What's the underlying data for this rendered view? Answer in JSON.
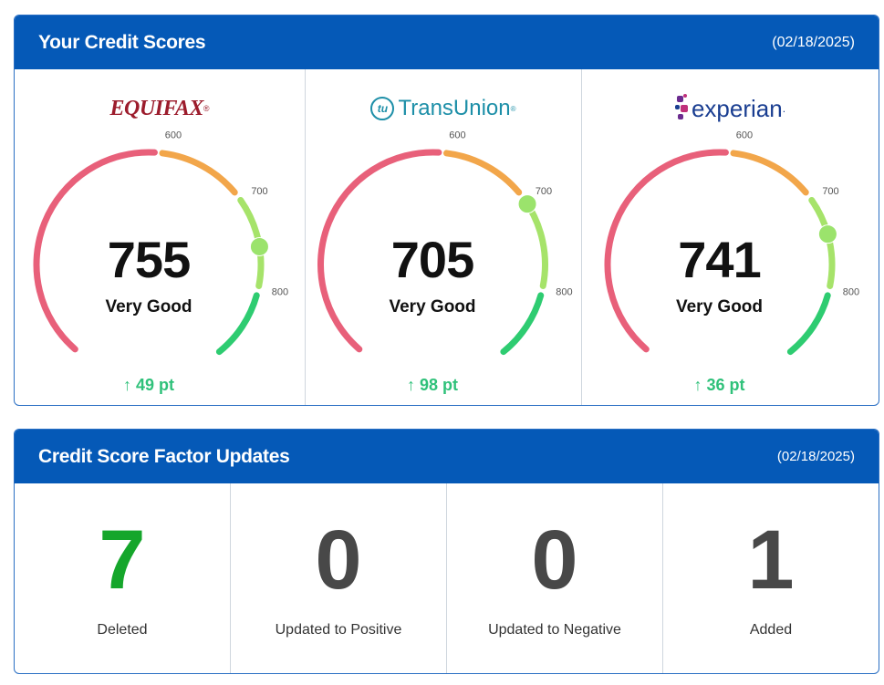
{
  "scores_card": {
    "title": "Your Credit Scores",
    "date": "(02/18/2025)",
    "bureaus": [
      {
        "logo_text": "EQUIFAX",
        "logo_mark": "®",
        "score": 755,
        "score_text": "755",
        "rating": "Very Good",
        "change": "49 pt",
        "change_icon": "arrow-up-icon"
      },
      {
        "logo_text": "TransUnion",
        "logo_badge": "tu",
        "logo_mark": "®",
        "score": 705,
        "score_text": "705",
        "rating": "Very Good",
        "change": "98 pt",
        "change_icon": "arrow-up-icon"
      },
      {
        "logo_text": "experian",
        "logo_mark": ".",
        "score": 741,
        "score_text": "741",
        "rating": "Very Good",
        "change": "36 pt",
        "change_icon": "arrow-up-icon"
      }
    ],
    "gauge": {
      "ticks": [
        "600",
        "700",
        "800"
      ],
      "colors": {
        "poor": "#e8607a",
        "fair": "#f2a64a",
        "good": "#a6e36a",
        "excellent": "#2ecc71",
        "marker": "#9be36c"
      }
    }
  },
  "factors_card": {
    "title": "Credit Score Factor Updates",
    "date": "(02/18/2025)",
    "items": [
      {
        "count": "7",
        "label": "Deleted",
        "highlight": true
      },
      {
        "count": "0",
        "label": "Updated to Positive"
      },
      {
        "count": "0",
        "label": "Updated to Negative"
      },
      {
        "count": "1",
        "label": "Added"
      }
    ]
  }
}
